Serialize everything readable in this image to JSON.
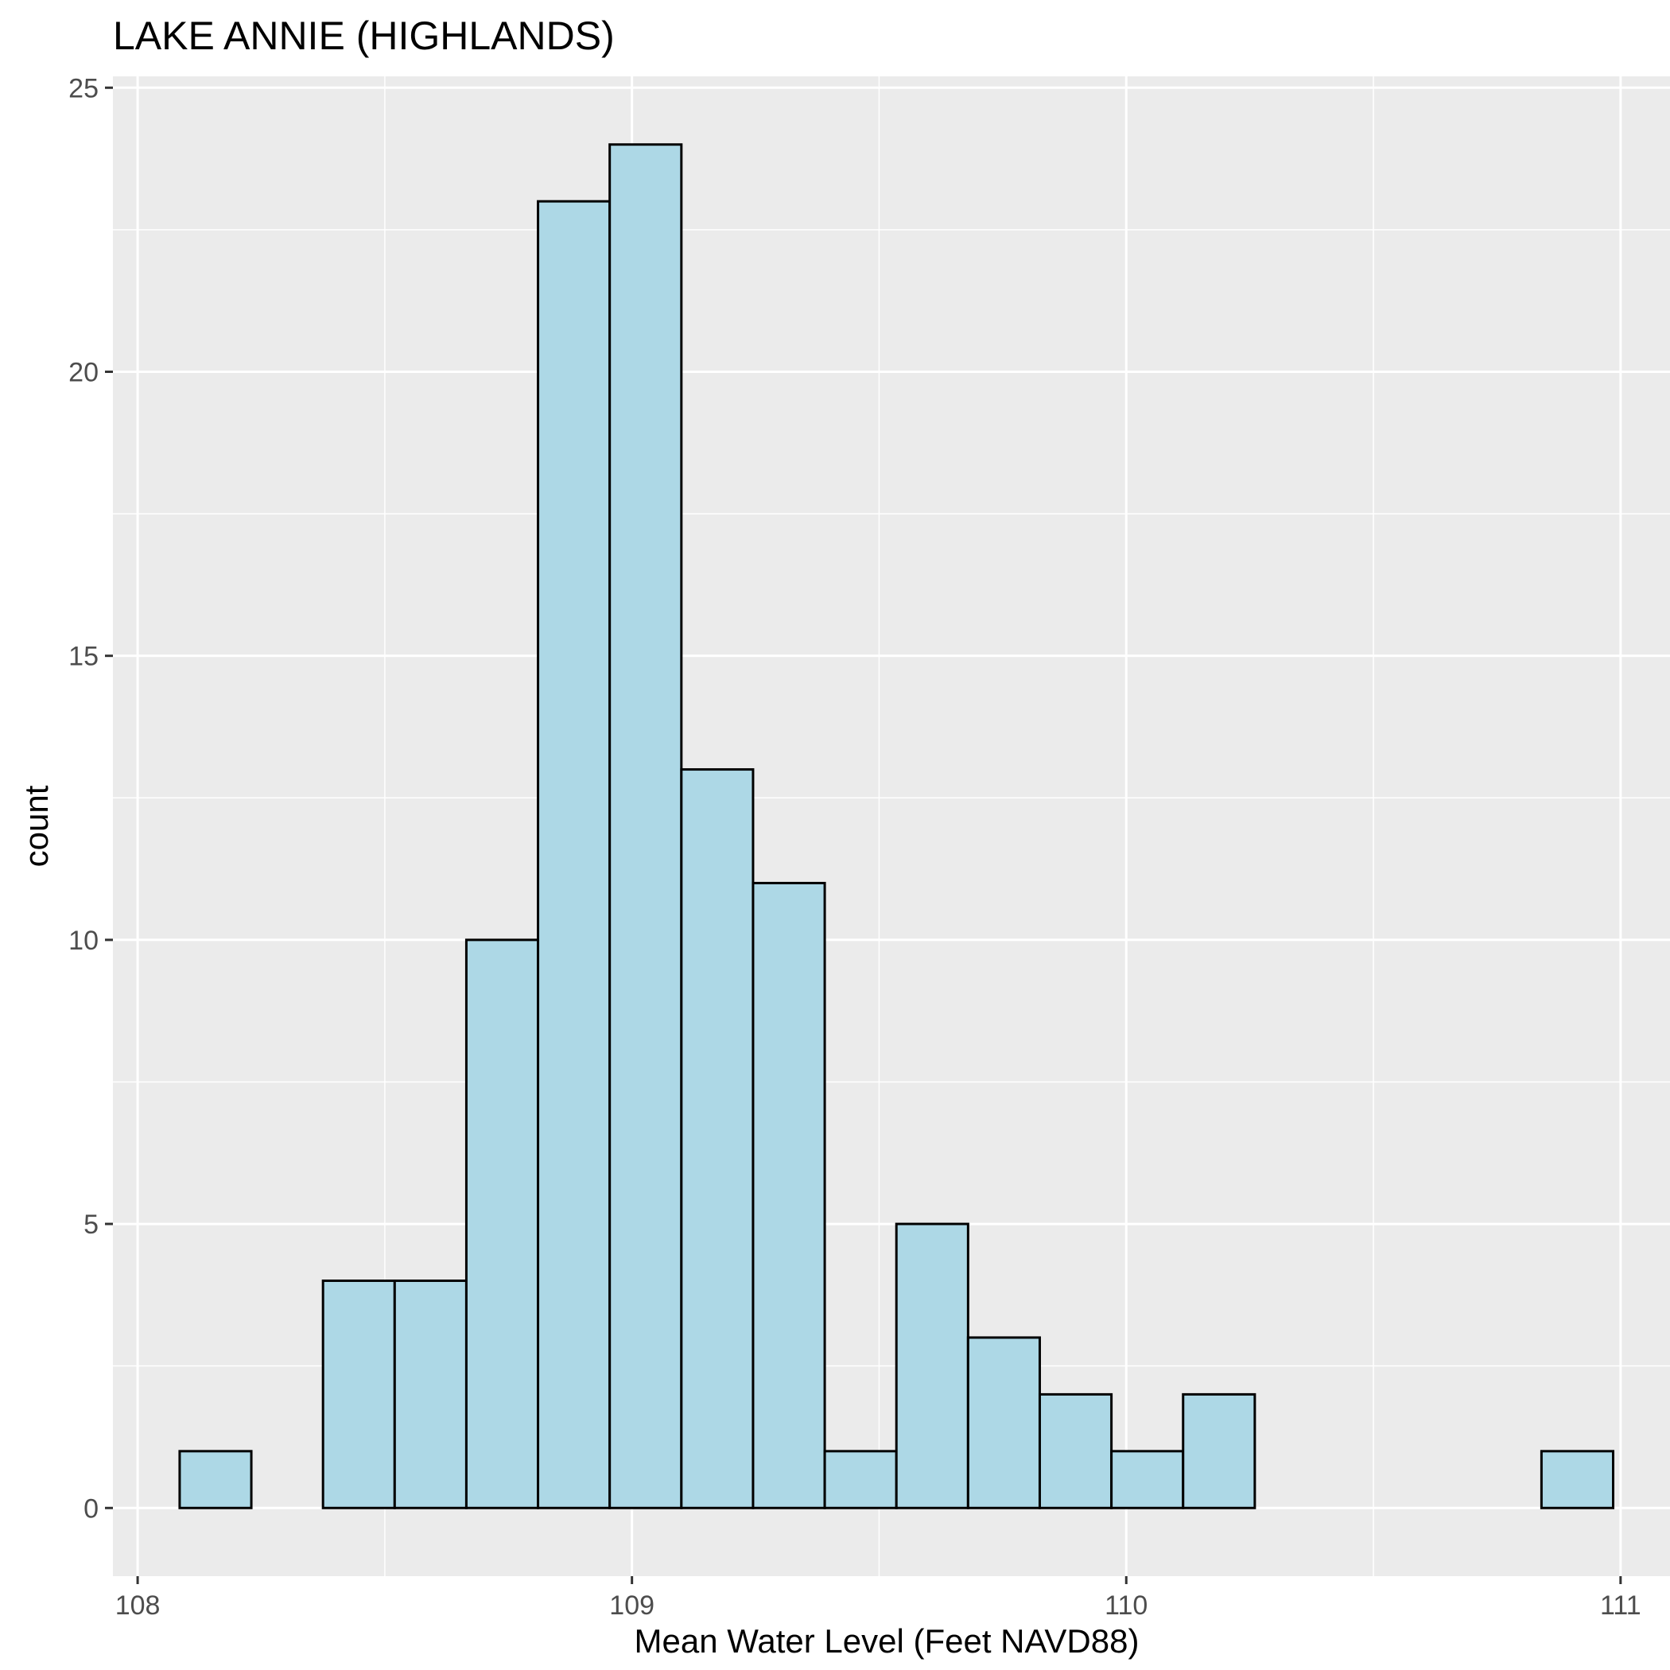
{
  "chart_data": {
    "type": "bar",
    "title": "LAKE ANNIE (HIGHLANDS)",
    "xlabel": "Mean Water Level (Feet NAVD88)",
    "ylabel": "count",
    "xlim": [
      107.95,
      111.1
    ],
    "ylim": [
      -1.2,
      25.2
    ],
    "x_ticks": [
      108,
      109,
      110,
      111
    ],
    "y_ticks": [
      0,
      5,
      10,
      15,
      20,
      25
    ],
    "grid": true,
    "bar_fill": "#add8e6",
    "bar_stroke": "#000000",
    "panel_background": "#ebebeb",
    "bins": [
      {
        "x0": 108.085,
        "x1": 108.23,
        "count": 1
      },
      {
        "x0": 108.23,
        "x1": 108.375,
        "count": 0
      },
      {
        "x0": 108.375,
        "x1": 108.52,
        "count": 4
      },
      {
        "x0": 108.52,
        "x1": 108.665,
        "count": 4
      },
      {
        "x0": 108.665,
        "x1": 108.81,
        "count": 10
      },
      {
        "x0": 108.81,
        "x1": 108.955,
        "count": 23
      },
      {
        "x0": 108.955,
        "x1": 109.1,
        "count": 24
      },
      {
        "x0": 109.1,
        "x1": 109.245,
        "count": 13
      },
      {
        "x0": 109.245,
        "x1": 109.39,
        "count": 11
      },
      {
        "x0": 109.39,
        "x1": 109.535,
        "count": 1
      },
      {
        "x0": 109.535,
        "x1": 109.68,
        "count": 5
      },
      {
        "x0": 109.68,
        "x1": 109.825,
        "count": 3
      },
      {
        "x0": 109.825,
        "x1": 109.97,
        "count": 2
      },
      {
        "x0": 109.97,
        "x1": 110.115,
        "count": 1
      },
      {
        "x0": 110.115,
        "x1": 110.26,
        "count": 2
      },
      {
        "x0": 110.26,
        "x1": 110.405,
        "count": 0
      },
      {
        "x0": 110.405,
        "x1": 110.55,
        "count": 0
      },
      {
        "x0": 110.55,
        "x1": 110.695,
        "count": 0
      },
      {
        "x0": 110.695,
        "x1": 110.84,
        "count": 0
      },
      {
        "x0": 110.84,
        "x1": 110.985,
        "count": 1
      }
    ]
  }
}
